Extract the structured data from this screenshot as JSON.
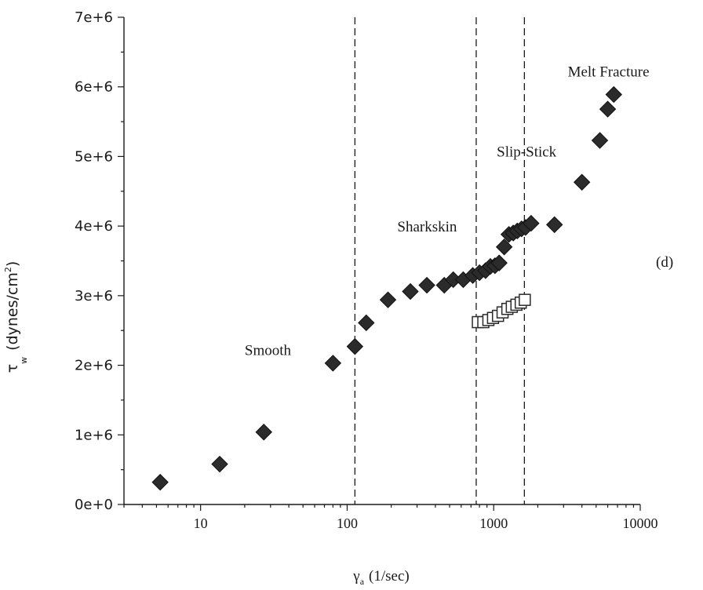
{
  "chart_data": {
    "type": "scatter",
    "x_scale": "log",
    "xlim": [
      3,
      10000
    ],
    "ylim": [
      0,
      7000000
    ],
    "xticks": [
      {
        "value": 10,
        "label": "10"
      },
      {
        "value": 100,
        "label": "100"
      },
      {
        "value": 1000,
        "label": "1000"
      },
      {
        "value": 10000,
        "label": "10000"
      }
    ],
    "yticks": [
      {
        "value": 0,
        "label": "0e+0"
      },
      {
        "value": 1000000,
        "label": "1e+6"
      },
      {
        "value": 2000000,
        "label": "2e+6"
      },
      {
        "value": 3000000,
        "label": "3e+6"
      },
      {
        "value": 4000000,
        "label": "4e+6"
      },
      {
        "value": 5000000,
        "label": "5e+6"
      },
      {
        "value": 6000000,
        "label": "6e+6"
      },
      {
        "value": 7000000,
        "label": "7e+6"
      }
    ],
    "xlabel": {
      "symbol": "γ",
      "subscript": "a",
      "unit": "(1/sec)"
    },
    "ylabel": {
      "symbol": "τ",
      "subscript": "w",
      "unit": "(dynes/cm",
      "superscript": "2",
      "close": ")"
    },
    "panel_label": "(d)",
    "grid": false,
    "vlines": [
      113,
      760,
      1620
    ],
    "annotations": [
      {
        "text": "Smooth",
        "x": 20,
        "y": 2150000
      },
      {
        "text": "Sharkskin",
        "x": 220,
        "y": 3920000
      },
      {
        "text": "Slip-Stick",
        "x": 1050,
        "y": 5000000
      },
      {
        "text": "Melt Fracture",
        "x": 3200,
        "y": 6150000
      }
    ],
    "series": [
      {
        "marker": "filled-diamond",
        "color": "#2b2b2b",
        "points": [
          [
            5.3,
            320000
          ],
          [
            13.5,
            580000
          ],
          [
            27,
            1040000
          ],
          [
            80,
            2030000
          ],
          [
            113,
            2270000
          ],
          [
            135,
            2610000
          ],
          [
            190,
            2940000
          ],
          [
            270,
            3060000
          ],
          [
            350,
            3150000
          ],
          [
            460,
            3150000
          ],
          [
            530,
            3230000
          ],
          [
            620,
            3230000
          ],
          [
            720,
            3290000
          ],
          [
            800,
            3330000
          ],
          [
            880,
            3360000
          ],
          [
            950,
            3420000
          ],
          [
            1020,
            3430000
          ],
          [
            1090,
            3470000
          ],
          [
            1180,
            3700000
          ],
          [
            1270,
            3880000
          ],
          [
            1360,
            3900000
          ],
          [
            1450,
            3930000
          ],
          [
            1550,
            3960000
          ],
          [
            1650,
            3980000
          ],
          [
            1800,
            4040000
          ],
          [
            2600,
            4020000
          ],
          [
            4000,
            4630000
          ],
          [
            5300,
            5230000
          ],
          [
            6000,
            5680000
          ],
          [
            6600,
            5890000
          ]
        ]
      },
      {
        "marker": "open-square",
        "color": "#2b2b2b",
        "points": [
          [
            780,
            2620000
          ],
          [
            850,
            2620000
          ],
          [
            920,
            2650000
          ],
          [
            990,
            2680000
          ],
          [
            1070,
            2710000
          ],
          [
            1150,
            2760000
          ],
          [
            1240,
            2810000
          ],
          [
            1330,
            2840000
          ],
          [
            1430,
            2870000
          ],
          [
            1530,
            2900000
          ],
          [
            1630,
            2940000
          ]
        ]
      }
    ]
  }
}
